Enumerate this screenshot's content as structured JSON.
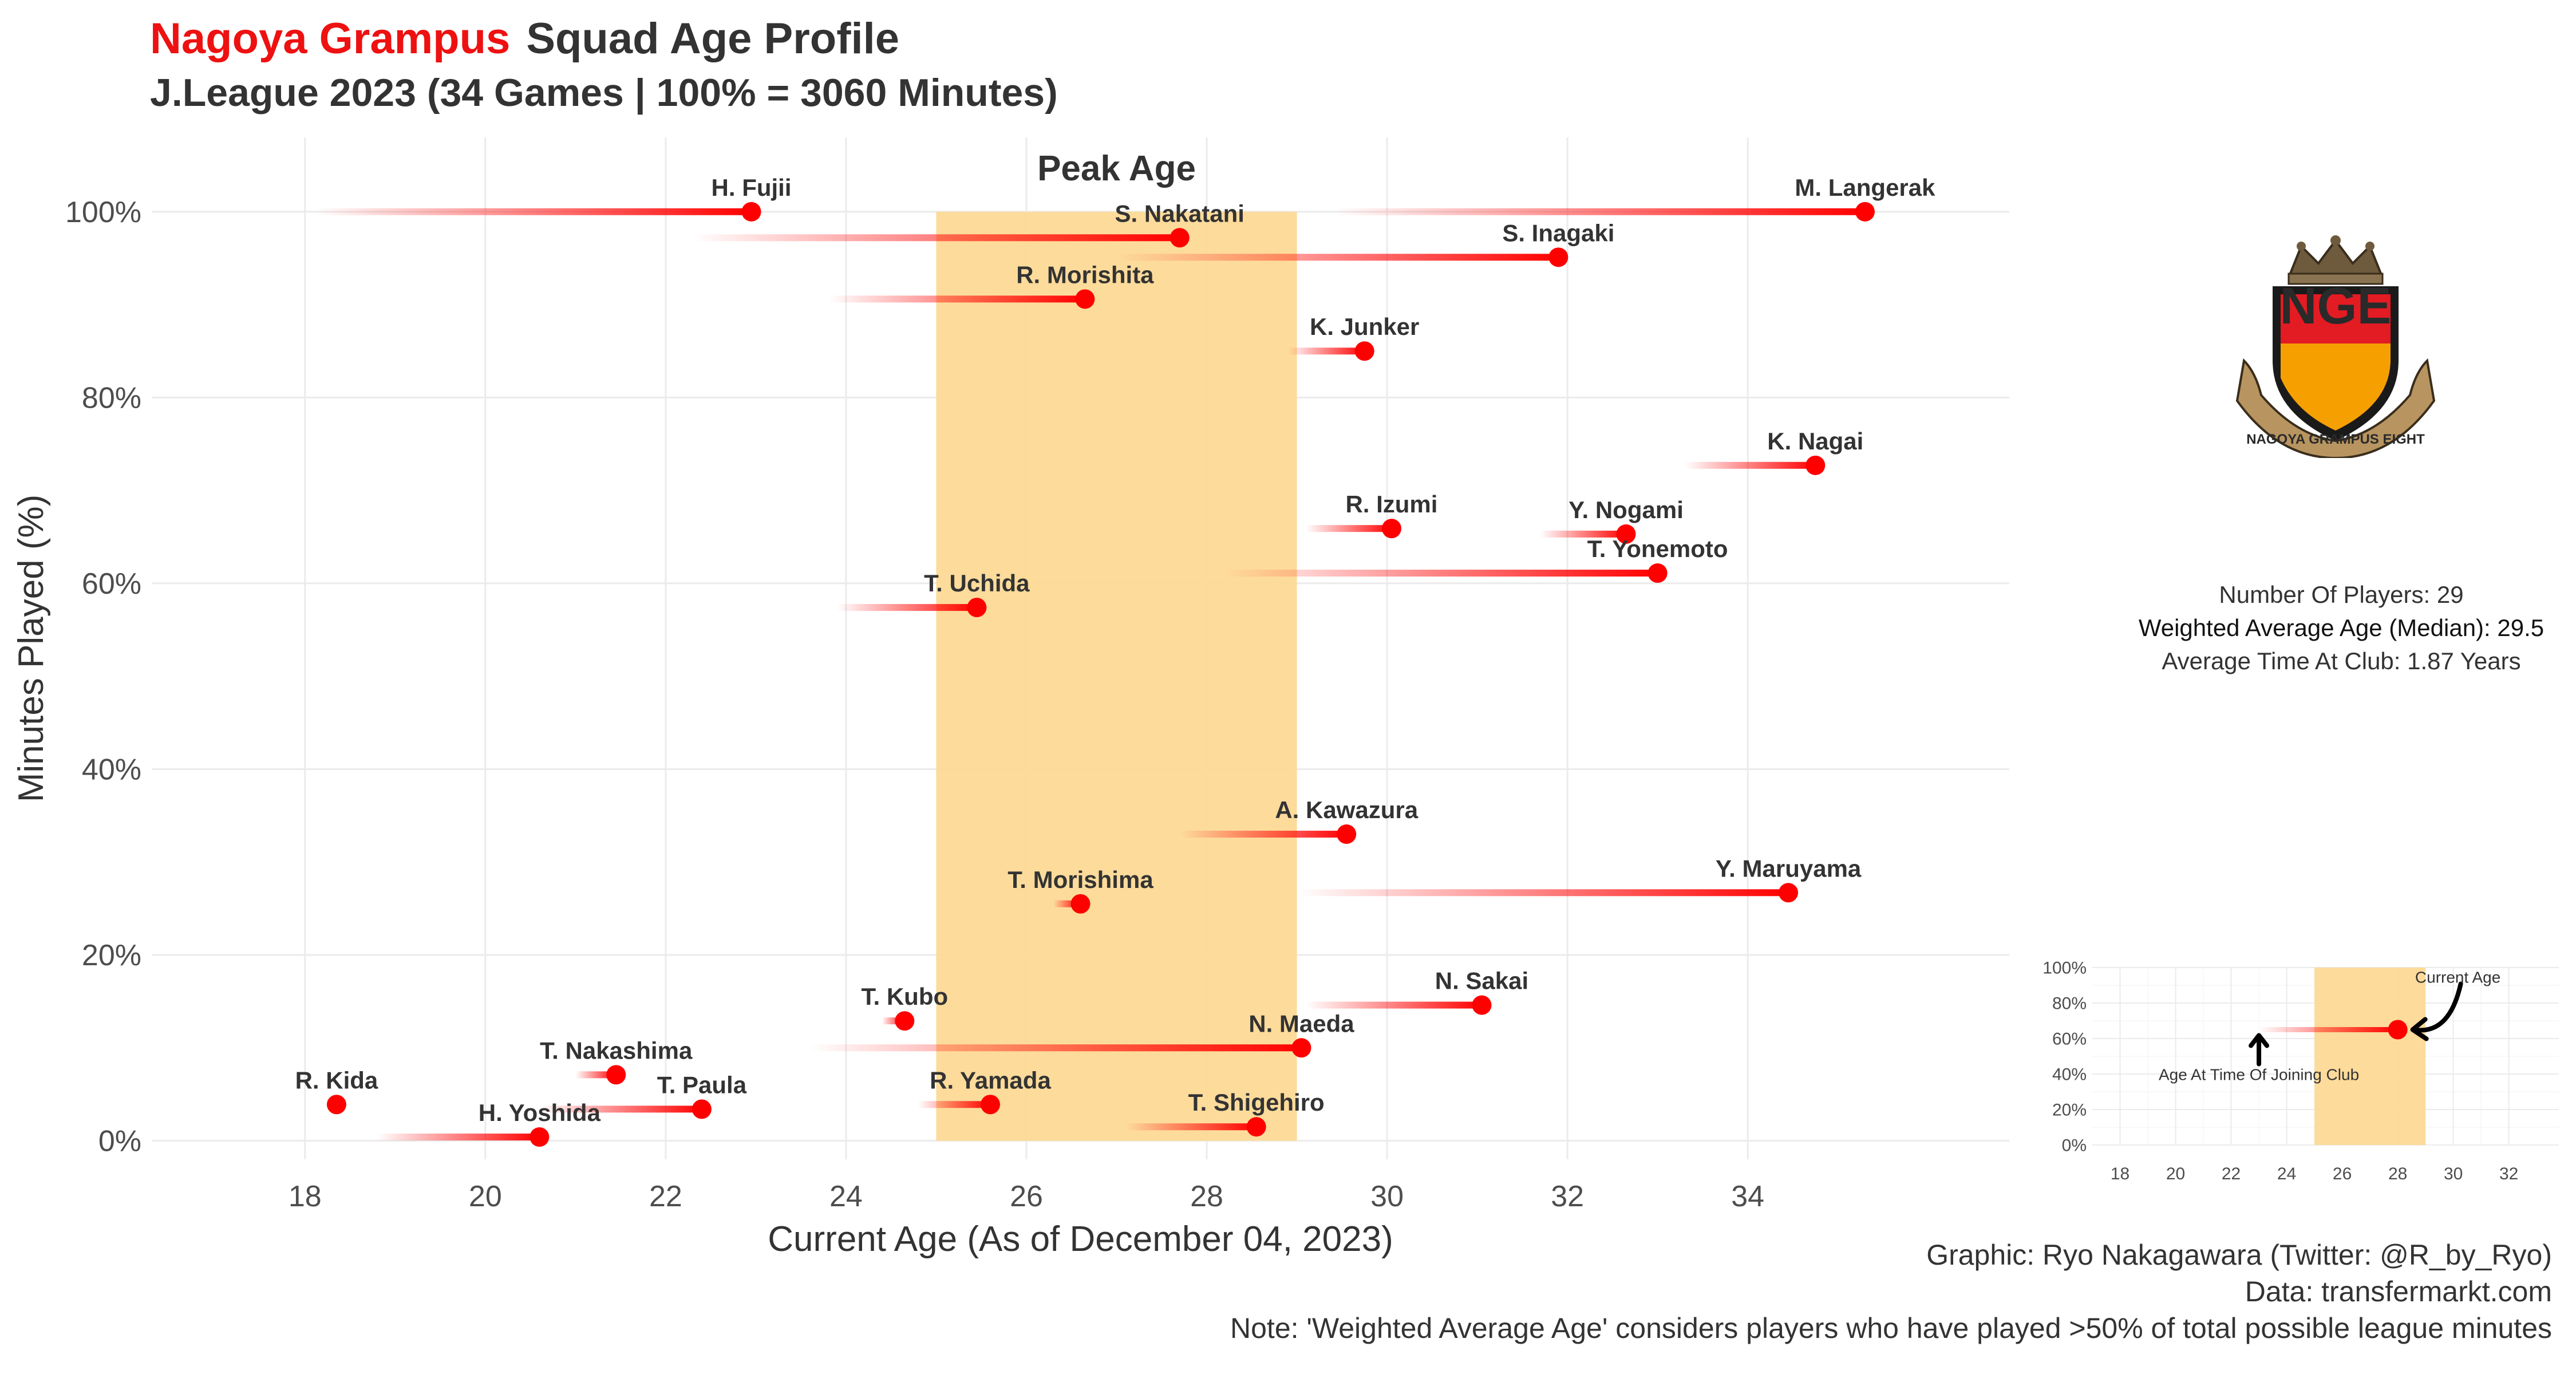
{
  "header": {
    "team": "Nagoya Grampus",
    "title_rest": "Squad Age Profile",
    "subtitle": "J.League 2023 (34 Games | 100% = 3060 Minutes)"
  },
  "stats": {
    "players": "Number Of Players: 29",
    "weighted_age": "Weighted Average Age (Median): 29.5",
    "avg_time": "Average Time At Club: 1.87 Years"
  },
  "crest": {
    "letters": "NGE",
    "ring_text": "NAGOYA GRAMPUS EIGHT"
  },
  "caption": {
    "credit": "Graphic: Ryo Nakagawara (Twitter: @R_by_Ryo)",
    "data": "Data: transfermarkt.com",
    "note": "Note: 'Weighted Average Age' considers players who have played >50% of total possible league minutes"
  },
  "colors": {
    "point": "#ff0000",
    "peak_band": "#fdd996",
    "title_accent": "#ee1111",
    "text": "#333333",
    "grid": "#ebebeb"
  },
  "chart_data": [
    {
      "type": "scatter",
      "xlabel": "Current Age (As of December 04, 2023)",
      "ylabel": "Minutes Played (%)",
      "xlim": [
        16.3,
        36.9
      ],
      "ylim": [
        -2,
        108
      ],
      "xticks": [
        18,
        20,
        22,
        24,
        26,
        28,
        30,
        32,
        34
      ],
      "yticks": [
        0,
        20,
        40,
        60,
        80,
        100
      ],
      "yticklabels": [
        "0%",
        "20%",
        "40%",
        "60%",
        "80%",
        "100%"
      ],
      "grid": true,
      "peak_age": {
        "label": "Peak Age",
        "from": 25,
        "to": 29
      },
      "players": [
        {
          "name": "H. Fujii",
          "join_age": 18.1,
          "age": 22.95,
          "minutes_pct": 100
        },
        {
          "name": "S. Nakatani",
          "join_age": 22.3,
          "age": 27.7,
          "minutes_pct": 97.2
        },
        {
          "name": "M. Langerak",
          "join_age": 29.4,
          "age": 35.3,
          "minutes_pct": 100
        },
        {
          "name": "S. Inagaki",
          "join_age": 27.0,
          "age": 31.9,
          "minutes_pct": 95.1
        },
        {
          "name": "R. Morishita",
          "join_age": 23.8,
          "age": 26.65,
          "minutes_pct": 90.6
        },
        {
          "name": "K. Junker",
          "join_age": 28.9,
          "age": 29.75,
          "minutes_pct": 85
        },
        {
          "name": "K. Nagai",
          "join_age": 33.3,
          "age": 34.75,
          "minutes_pct": 72.7
        },
        {
          "name": "R. Izumi",
          "join_age": 29.1,
          "age": 30.05,
          "minutes_pct": 65.9
        },
        {
          "name": "Y. Nogami",
          "join_age": 31.7,
          "age": 32.65,
          "minutes_pct": 65.3
        },
        {
          "name": "T. Yonemoto",
          "join_age": 28.2,
          "age": 33.0,
          "minutes_pct": 61.1
        },
        {
          "name": "T. Uchida",
          "join_age": 23.9,
          "age": 25.45,
          "minutes_pct": 57.4
        },
        {
          "name": "A. Kawazura",
          "join_age": 27.7,
          "age": 29.55,
          "minutes_pct": 33.0
        },
        {
          "name": "Y. Maruyama",
          "join_age": 29.0,
          "age": 34.45,
          "minutes_pct": 26.7
        },
        {
          "name": "T. Morishima",
          "join_age": 26.3,
          "age": 26.6,
          "minutes_pct": 25.5
        },
        {
          "name": "N. Sakai",
          "join_age": 29.1,
          "age": 31.05,
          "minutes_pct": 14.6
        },
        {
          "name": "T. Kubo",
          "join_age": 24.4,
          "age": 24.65,
          "minutes_pct": 12.9
        },
        {
          "name": "N. Maeda",
          "join_age": 23.6,
          "age": 29.05,
          "minutes_pct": 10.0
        },
        {
          "name": "T. Nakashima",
          "join_age": 21.0,
          "age": 21.45,
          "minutes_pct": 7.1
        },
        {
          "name": "R. Kida",
          "join_age": 18.35,
          "age": 18.35,
          "minutes_pct": 3.9
        },
        {
          "name": "T. Paula",
          "join_age": 20.6,
          "age": 22.4,
          "minutes_pct": 3.4
        },
        {
          "name": "R. Yamada",
          "join_age": 24.8,
          "age": 25.6,
          "minutes_pct": 3.9
        },
        {
          "name": "H. Yoshida",
          "join_age": 18.8,
          "age": 20.6,
          "minutes_pct": 0.4
        },
        {
          "name": "T. Shigehiro",
          "join_age": 27.1,
          "age": 28.55,
          "minutes_pct": 1.5
        }
      ]
    },
    {
      "type": "scatter",
      "xlim": [
        17,
        33.8
      ],
      "ylim": [
        0,
        100
      ],
      "xticks": [
        18,
        20,
        22,
        24,
        26,
        28,
        30,
        32
      ],
      "yticks": [
        0,
        20,
        40,
        60,
        80,
        100
      ],
      "yticklabels": [
        "0%",
        "20%",
        "40%",
        "60%",
        "80%",
        "100%"
      ],
      "grid": true,
      "peak_age": {
        "from": 25,
        "to": 29
      },
      "example": {
        "join_age": 23,
        "age": 28,
        "minutes_pct": 65
      },
      "annotations": {
        "current": "Current Age",
        "joined": "Age At Time Of Joining Club"
      }
    }
  ]
}
